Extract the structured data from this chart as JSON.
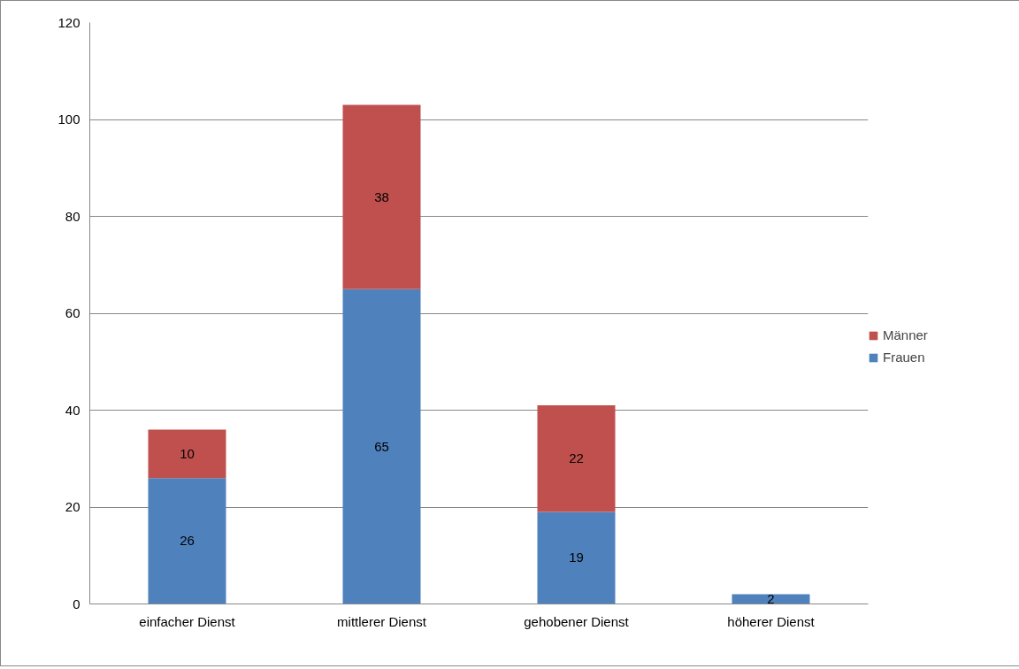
{
  "chart_data": {
    "type": "bar",
    "stacked": true,
    "categories": [
      "einfacher Dienst",
      "mittlerer Dienst",
      "gehobener Dienst",
      "höherer Dienst"
    ],
    "series": [
      {
        "name": "Frauen",
        "color": "#4f81bd",
        "values": [
          26,
          65,
          19,
          2
        ],
        "value_labels": [
          "26",
          "65",
          "19",
          "2"
        ]
      },
      {
        "name": "Männer",
        "color": "#c0504d",
        "values": [
          10,
          38,
          22,
          0
        ],
        "value_labels": [
          "10",
          "38",
          "22",
          null
        ]
      }
    ],
    "ylim": [
      0,
      120
    ],
    "yticks": [
      0,
      20,
      40,
      60,
      80,
      100,
      120
    ],
    "grid": "y",
    "legend": "right"
  }
}
